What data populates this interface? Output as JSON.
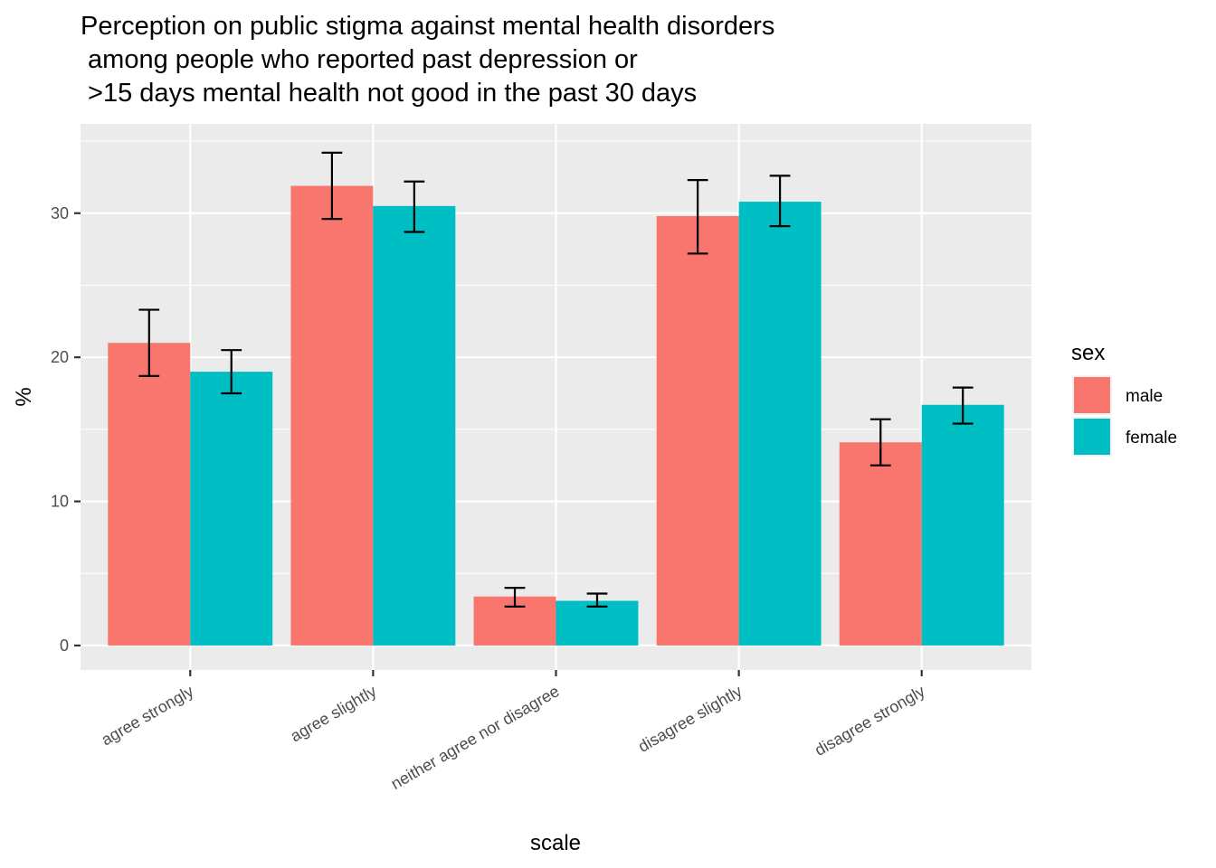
{
  "chart_data": {
    "type": "bar",
    "title_lines": [
      "Perception on public stigma against mental health disorders",
      " among people who reported past depression or",
      " >15 days mental health not good in the past 30 days"
    ],
    "xlabel": "scale",
    "ylabel": "%",
    "categories": [
      "agree strongly",
      "agree slightly",
      "neither agree nor disagree",
      "disagree slightly",
      "disagree strongly"
    ],
    "series": [
      {
        "name": "male",
        "color": "#F8766D",
        "values": [
          21.0,
          31.9,
          3.4,
          29.8,
          14.1
        ],
        "error_low": [
          18.7,
          29.6,
          2.7,
          27.2,
          12.5
        ],
        "error_high": [
          23.3,
          34.2,
          4.0,
          32.3,
          15.7
        ]
      },
      {
        "name": "female",
        "color": "#00BFC4",
        "values": [
          19.0,
          30.5,
          3.1,
          30.8,
          16.7
        ],
        "error_low": [
          17.5,
          28.7,
          2.7,
          29.1,
          15.4
        ],
        "error_high": [
          20.5,
          32.2,
          3.6,
          32.6,
          17.9
        ]
      }
    ],
    "ylim": [
      -1.7,
      36.2
    ],
    "y_ticks": [
      0,
      10,
      20,
      30
    ],
    "y_tick_labels": [
      "0",
      "10",
      "20",
      "30"
    ],
    "grid": true,
    "legend": {
      "title": "sex",
      "position": "right"
    }
  }
}
